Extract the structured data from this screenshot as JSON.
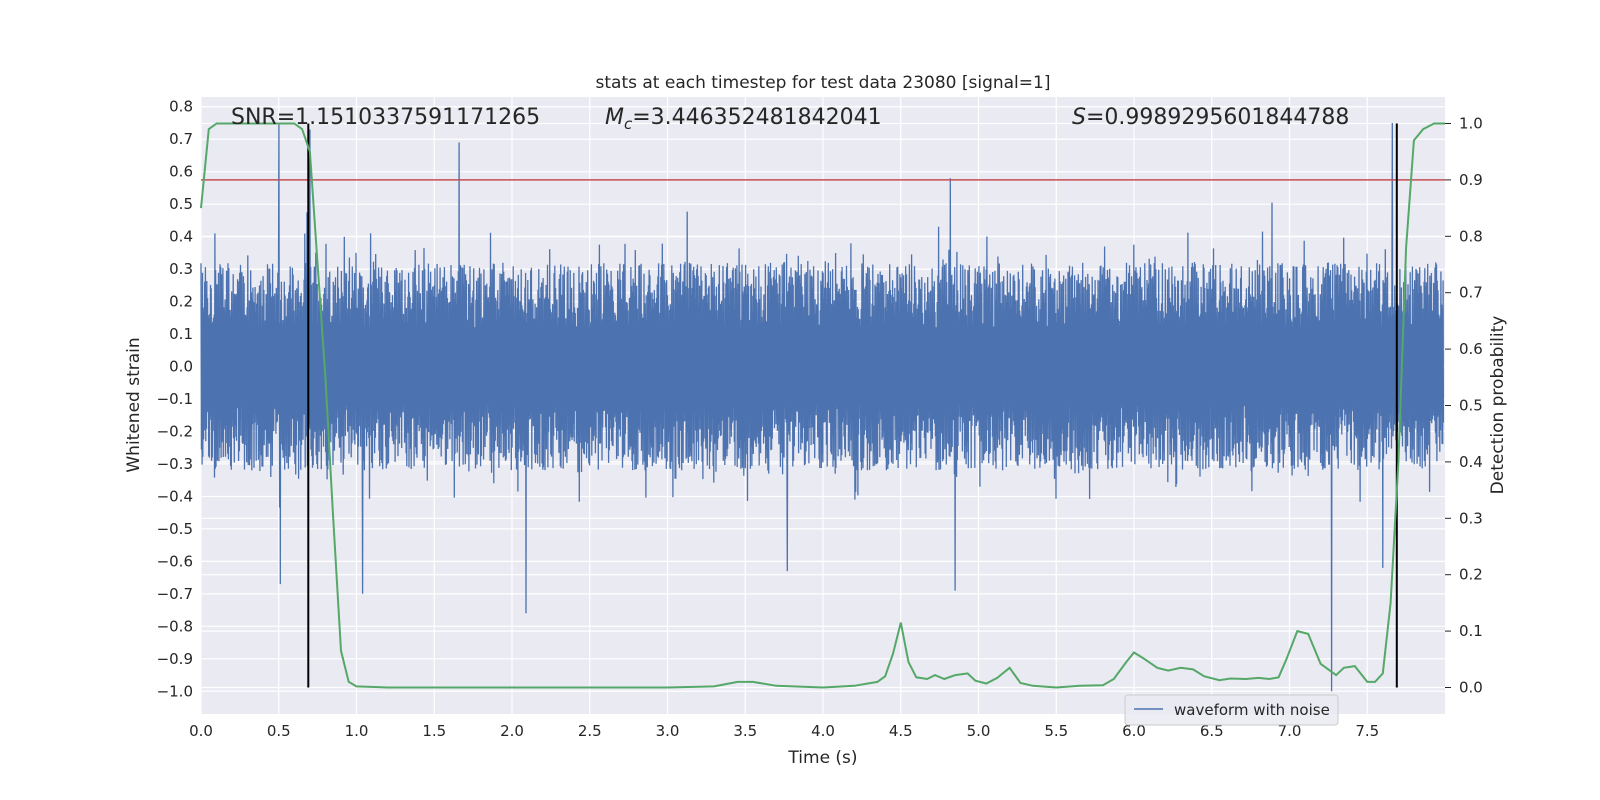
{
  "chart_data": {
    "type": "line",
    "title": "stats at each timestep for test data 23080 [signal=1]",
    "xlabel": "Time (s)",
    "ylabel": "Whitened strain",
    "y2label": "Detection probability",
    "xlim": [
      0.0,
      8.0
    ],
    "ylim": [
      -1.07,
      0.83
    ],
    "y2lim": [
      -0.047,
      1.047
    ],
    "xticks": [
      "0.0",
      "0.5",
      "1.0",
      "1.5",
      "2.0",
      "2.5",
      "3.0",
      "3.5",
      "4.0",
      "4.5",
      "5.0",
      "5.5",
      "6.0",
      "6.5",
      "7.0",
      "7.5"
    ],
    "yticks": [
      "0.8",
      "0.7",
      "0.6",
      "0.5",
      "0.4",
      "0.3",
      "0.2",
      "0.1",
      "0.0",
      "−0.1",
      "−0.2",
      "−0.3",
      "−0.4",
      "−0.5",
      "−0.6",
      "−0.7",
      "−0.8",
      "−0.9",
      "−1.0"
    ],
    "y2ticks": [
      "1.0",
      "0.9",
      "0.8",
      "0.7",
      "0.6",
      "0.5",
      "0.4",
      "0.3",
      "0.2",
      "0.1",
      "0.0"
    ],
    "grid": true,
    "legend_position": "lower-right",
    "annotations": {
      "snr": "SNR=1.1510337591171265",
      "mc_symbol": "M",
      "mc_sub": "c",
      "mc_value": "=3.446352481842041",
      "s_symbol": "S",
      "s_value": "=0.9989295601844788"
    },
    "colors": {
      "waveform": "#4c72b0",
      "probability": "#55a868",
      "threshold": "#c44e52",
      "markers": "#000000",
      "background": "#eaeaf2",
      "grid": "#ffffff"
    },
    "threshold_y": 0.9,
    "vertical_markers_x": [
      0.69,
      7.69
    ],
    "series": [
      {
        "name": "waveform with noise",
        "axis": "left",
        "description": "noise-dominated strain trace, |strain| mostly below 0.35, peaks reaching ~0.75 and ~-1.0",
        "peaks": [
          {
            "x": 0.5,
            "y": 0.75
          },
          {
            "x": 0.51,
            "y": -0.67
          },
          {
            "x": 0.7,
            "y": 0.73
          },
          {
            "x": 1.04,
            "y": -0.7
          },
          {
            "x": 1.66,
            "y": 0.69
          },
          {
            "x": 2.09,
            "y": -0.76
          },
          {
            "x": 3.77,
            "y": -0.63
          },
          {
            "x": 4.85,
            "y": -0.69
          },
          {
            "x": 4.82,
            "y": 0.58
          },
          {
            "x": 7.27,
            "y": -1.0
          },
          {
            "x": 7.6,
            "y": -0.62
          },
          {
            "x": 7.66,
            "y": 0.75
          }
        ]
      },
      {
        "name": "detection probability",
        "axis": "right",
        "x": [
          0.0,
          0.05,
          0.1,
          0.2,
          0.3,
          0.4,
          0.5,
          0.6,
          0.65,
          0.7,
          0.75,
          0.8,
          0.85,
          0.9,
          0.95,
          1.0,
          1.2,
          1.5,
          2.0,
          2.5,
          3.0,
          3.3,
          3.45,
          3.55,
          3.7,
          4.0,
          4.2,
          4.35,
          4.4,
          4.45,
          4.5,
          4.55,
          4.6,
          4.67,
          4.72,
          4.78,
          4.85,
          4.93,
          4.98,
          5.05,
          5.12,
          5.2,
          5.27,
          5.35,
          5.5,
          5.65,
          5.8,
          5.87,
          5.95,
          6.0,
          6.07,
          6.15,
          6.22,
          6.3,
          6.38,
          6.45,
          6.55,
          6.62,
          6.72,
          6.8,
          6.87,
          6.93,
          6.98,
          7.05,
          7.12,
          7.2,
          7.3,
          7.35,
          7.42,
          7.5,
          7.55,
          7.6,
          7.65,
          7.7,
          7.75,
          7.8,
          7.86,
          7.93,
          8.0
        ],
        "values": [
          0.85,
          0.99,
          1.0,
          1.0,
          1.0,
          1.0,
          1.0,
          1.0,
          0.99,
          0.95,
          0.75,
          0.55,
          0.3,
          0.065,
          0.01,
          0.002,
          0.0,
          0.0,
          0.0,
          0.0,
          0.0,
          0.002,
          0.01,
          0.01,
          0.003,
          0.0,
          0.003,
          0.01,
          0.02,
          0.06,
          0.115,
          0.045,
          0.018,
          0.015,
          0.022,
          0.015,
          0.022,
          0.025,
          0.012,
          0.007,
          0.017,
          0.035,
          0.008,
          0.003,
          0.0,
          0.003,
          0.004,
          0.015,
          0.045,
          0.062,
          0.05,
          0.035,
          0.03,
          0.035,
          0.032,
          0.02,
          0.013,
          0.016,
          0.015,
          0.017,
          0.015,
          0.018,
          0.05,
          0.1,
          0.095,
          0.042,
          0.022,
          0.035,
          0.038,
          0.01,
          0.01,
          0.025,
          0.15,
          0.4,
          0.78,
          0.97,
          0.99,
          1.0,
          1.0
        ]
      }
    ]
  }
}
